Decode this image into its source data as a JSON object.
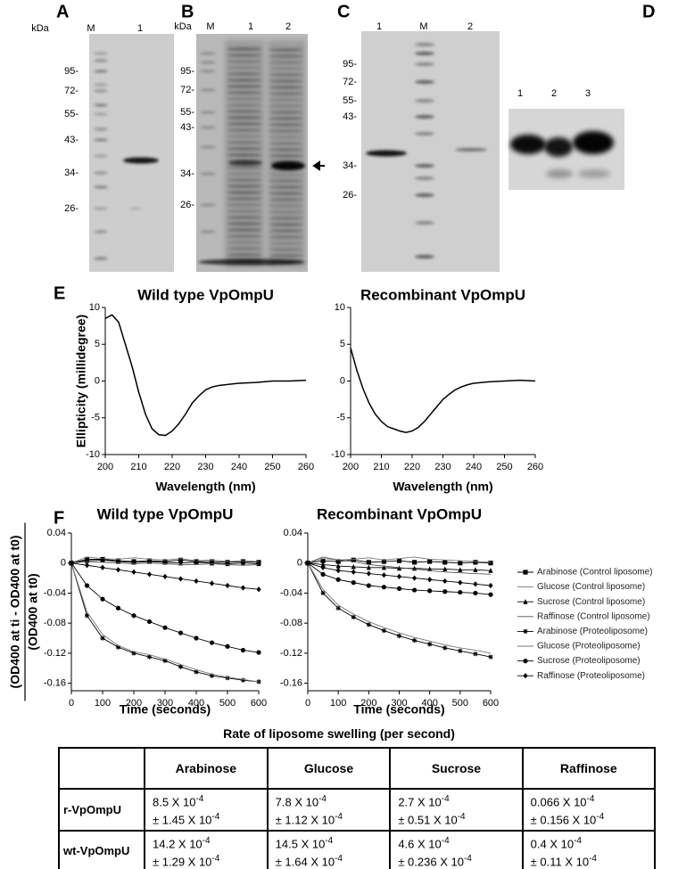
{
  "panels": {
    "A": {
      "letter": "A",
      "units": "kDa",
      "lanes": [
        "M",
        "1"
      ],
      "markers": [
        "95-",
        "72-",
        "55-",
        "43-",
        "34-",
        "26-"
      ]
    },
    "B": {
      "letter": "B",
      "units": "kDa",
      "lanes": [
        "M",
        "1",
        "2"
      ],
      "markers": [
        "95-",
        "72-",
        "55-",
        "43-",
        "34-",
        "26-"
      ]
    },
    "C": {
      "letter": "C",
      "lanes": [
        "1",
        "M",
        "2"
      ],
      "markers": [
        "95-",
        "72-",
        "55-",
        "43-",
        "34-",
        "26-"
      ]
    },
    "D": {
      "letter": "D",
      "lanes": [
        "1",
        "2",
        "3"
      ]
    }
  },
  "sections": {
    "E": "E",
    "F": "F"
  },
  "chart_data": [
    {
      "type": "line",
      "title": "Wild type VpOmpU",
      "xlabel": "Wavelength (nm)",
      "ylabel": "Ellipticity (millidegree)",
      "x": [
        200,
        202,
        204,
        206,
        208,
        210,
        212,
        214,
        216,
        218,
        220,
        222,
        224,
        226,
        228,
        230,
        232,
        234,
        236,
        238,
        240,
        245,
        250,
        255,
        260
      ],
      "series": [
        {
          "color": "#000000",
          "values": [
            8.5,
            9,
            8,
            5,
            2,
            -1.5,
            -4.5,
            -6.5,
            -7.3,
            -7.4,
            -6.8,
            -5.8,
            -4.5,
            -3,
            -2,
            -1.2,
            -0.8,
            -0.6,
            -0.5,
            -0.4,
            -0.3,
            -0.2,
            0,
            0,
            0.1
          ]
        }
      ],
      "xlim": [
        200,
        260
      ],
      "xticks": [
        200,
        210,
        220,
        230,
        240,
        250,
        260
      ],
      "ylim": [
        -10,
        10
      ],
      "yticks": [
        -10,
        -5,
        0,
        5,
        10
      ]
    },
    {
      "type": "line",
      "title": "Recombinant VpOmpU",
      "xlabel": "Wavelength (nm)",
      "x": [
        200,
        202,
        204,
        206,
        208,
        210,
        212,
        214,
        216,
        218,
        220,
        222,
        224,
        226,
        228,
        230,
        232,
        234,
        236,
        238,
        240,
        245,
        250,
        255,
        260
      ],
      "series": [
        {
          "color": "#000000",
          "values": [
            4.5,
            1.5,
            -1,
            -3,
            -4.5,
            -5.5,
            -6.2,
            -6.5,
            -6.8,
            -7,
            -6.8,
            -6.3,
            -5.5,
            -4.5,
            -3.5,
            -2.5,
            -1.8,
            -1.2,
            -0.8,
            -0.5,
            -0.3,
            -0.1,
            0,
            0.1,
            0
          ]
        }
      ],
      "xlim": [
        200,
        260
      ],
      "xticks": [
        200,
        210,
        220,
        230,
        240,
        250,
        260
      ],
      "ylim": [
        -10,
        10
      ],
      "yticks": [
        -10,
        -5,
        0,
        5,
        10
      ]
    },
    {
      "type": "line",
      "title": "Wild type VpOmpU",
      "xlabel": "Time (seconds)",
      "ylabel": [
        "(OD400 at ti - OD400 at t0)",
        "(OD400 at t0)"
      ],
      "legend": "right",
      "x": [
        0,
        50,
        100,
        150,
        200,
        250,
        300,
        350,
        400,
        450,
        500,
        550,
        600
      ],
      "series": [
        {
          "name": "Arabinose (Control liposome)",
          "color": "#000000",
          "marker": "square",
          "values": [
            0,
            0.005,
            0.005,
            0.003,
            0.002,
            0.003,
            0.002,
            0.004,
            0.002,
            0.002,
            0.001,
            0.002,
            0.001
          ]
        },
        {
          "name": "Glucose (Control liposome)",
          "color": "#777777",
          "marker": "none",
          "values": [
            0,
            0.008,
            0.006,
            0.005,
            0.007,
            0.005,
            0.004,
            0.006,
            0.003,
            0.004,
            0.002,
            0.003,
            0.002
          ]
        },
        {
          "name": "Sucrose (Control liposome)",
          "color": "#000000",
          "marker": "triangle",
          "values": [
            0,
            0.003,
            0.004,
            0.002,
            0.001,
            0.002,
            0.001,
            0,
            0.001,
            0,
            -0.001,
            0,
            -0.001
          ]
        },
        {
          "name": "Raffinose (Control liposome)",
          "color": "#555555",
          "marker": "none",
          "values": [
            0,
            0.002,
            0.001,
            0,
            -0.001,
            0,
            -0.001,
            -0.002,
            -0.002,
            -0.001,
            -0.002,
            -0.003,
            -0.002
          ]
        },
        {
          "name": "Arabinose (Proteoliposome)",
          "color": "#000000",
          "marker": "star",
          "values": [
            0,
            -0.07,
            -0.1,
            -0.112,
            -0.12,
            -0.125,
            -0.13,
            -0.138,
            -0.145,
            -0.15,
            -0.153,
            -0.156,
            -0.158
          ]
        },
        {
          "name": "Glucose (Proteoliposome)",
          "color": "#777777",
          "marker": "none",
          "values": [
            0,
            -0.065,
            -0.095,
            -0.11,
            -0.118,
            -0.122,
            -0.128,
            -0.135,
            -0.142,
            -0.148,
            -0.152,
            -0.155,
            -0.158
          ]
        },
        {
          "name": "Sucrose (Proteoliposome)",
          "color": "#000000",
          "marker": "circle",
          "values": [
            0,
            -0.03,
            -0.048,
            -0.06,
            -0.07,
            -0.078,
            -0.086,
            -0.093,
            -0.1,
            -0.106,
            -0.111,
            -0.116,
            -0.119
          ]
        },
        {
          "name": "Raffinose (Proteoliposome)",
          "color": "#000000",
          "marker": "diamond",
          "values": [
            0,
            -0.003,
            -0.006,
            -0.009,
            -0.012,
            -0.015,
            -0.018,
            -0.021,
            -0.024,
            -0.027,
            -0.03,
            -0.033,
            -0.035
          ]
        }
      ],
      "xlim": [
        0,
        600
      ],
      "xticks": [
        0,
        100,
        200,
        300,
        400,
        500,
        600
      ],
      "ylim": [
        -0.17,
        0.04
      ],
      "yticks": [
        -0.16,
        -0.12,
        -0.08,
        -0.04,
        0,
        0.04
      ]
    },
    {
      "type": "line",
      "title": "Recombinant VpOmpU",
      "xlabel": "Time (seconds)",
      "x": [
        0,
        50,
        100,
        150,
        200,
        250,
        300,
        350,
        400,
        450,
        500,
        550,
        600
      ],
      "series": [
        {
          "color": "#000000",
          "marker": "square",
          "values": [
            0,
            0.003,
            0.002,
            0.004,
            0.001,
            0.002,
            0.003,
            0.001,
            0.002,
            0.001,
            0,
            0.001,
            0
          ]
        },
        {
          "color": "#777777",
          "marker": "none",
          "values": [
            0,
            0.006,
            0.004,
            0.005,
            0.007,
            0.004,
            0.006,
            0.008,
            0.005,
            0.004,
            0.003,
            0.002,
            0.001
          ]
        },
        {
          "color": "#000000",
          "marker": "triangle",
          "values": [
            0,
            -0.002,
            -0.004,
            -0.005,
            -0.006,
            -0.006,
            -0.007,
            -0.007,
            -0.008,
            -0.008,
            -0.009,
            -0.009,
            -0.01
          ]
        },
        {
          "color": "#555555",
          "marker": "none",
          "values": [
            0,
            0.008,
            0.004,
            0.002,
            -0.002,
            -0.004,
            -0.006,
            -0.008,
            -0.01,
            -0.012,
            -0.013,
            -0.014,
            -0.015
          ]
        },
        {
          "color": "#000000",
          "marker": "star",
          "values": [
            0,
            -0.04,
            -0.06,
            -0.072,
            -0.082,
            -0.09,
            -0.097,
            -0.103,
            -0.108,
            -0.113,
            -0.117,
            -0.121,
            -0.125
          ]
        },
        {
          "color": "#777777",
          "marker": "none",
          "values": [
            0,
            -0.035,
            -0.056,
            -0.068,
            -0.078,
            -0.086,
            -0.093,
            -0.099,
            -0.104,
            -0.109,
            -0.113,
            -0.116,
            -0.12
          ]
        },
        {
          "color": "#000000",
          "marker": "circle",
          "values": [
            0,
            -0.015,
            -0.022,
            -0.026,
            -0.03,
            -0.032,
            -0.034,
            -0.036,
            -0.037,
            -0.038,
            -0.039,
            -0.04,
            -0.042
          ]
        },
        {
          "color": "#000000",
          "marker": "diamond",
          "values": [
            0,
            -0.006,
            -0.01,
            -0.012,
            -0.014,
            -0.016,
            -0.018,
            -0.02,
            -0.022,
            -0.024,
            -0.026,
            -0.028,
            -0.03
          ]
        }
      ],
      "xlim": [
        0,
        600
      ],
      "xticks": [
        0,
        100,
        200,
        300,
        400,
        500,
        600
      ],
      "ylim": [
        -0.17,
        0.04
      ],
      "yticks": [
        -0.16,
        -0.12,
        -0.08,
        -0.04,
        0,
        0.04
      ]
    }
  ],
  "table": {
    "title": "Rate of liposome swelling (per second)",
    "columns": [
      "Arabinose",
      "Glucose",
      "Sucrose",
      "Raffinose"
    ],
    "rows": [
      {
        "label": "r-VpOmpU",
        "cells": [
          {
            "mean": "8.5 X 10",
            "mean_exp": "-4",
            "sd": "± 1.45 X 10",
            "sd_exp": "-4"
          },
          {
            "mean": "7.8 X 10",
            "mean_exp": "-4",
            "sd": "± 1.12 X 10",
            "sd_exp": "-4"
          },
          {
            "mean": "2.7 X 10",
            "mean_exp": "-4",
            "sd": "± 0.51 X 10",
            "sd_exp": "-4"
          },
          {
            "mean": "0.066 X 10",
            "mean_exp": "-4",
            "sd": "± 0.156 X 10",
            "sd_exp": "-4"
          }
        ]
      },
      {
        "label": "wt-VpOmpU",
        "cells": [
          {
            "mean": "14.2 X 10",
            "mean_exp": "-4",
            "sd": "± 1.29 X 10",
            "sd_exp": "-4"
          },
          {
            "mean": "14.5 X 10",
            "mean_exp": "-4",
            "sd": "± 1.64 X 10",
            "sd_exp": "-4"
          },
          {
            "mean": "4.6 X 10",
            "mean_exp": "-4",
            "sd": "± 0.236 X 10",
            "sd_exp": "-4"
          },
          {
            "mean": "0.4 X 10",
            "mean_exp": "-4",
            "sd": "± 0.11 X 10",
            "sd_exp": "-4"
          }
        ]
      }
    ]
  }
}
